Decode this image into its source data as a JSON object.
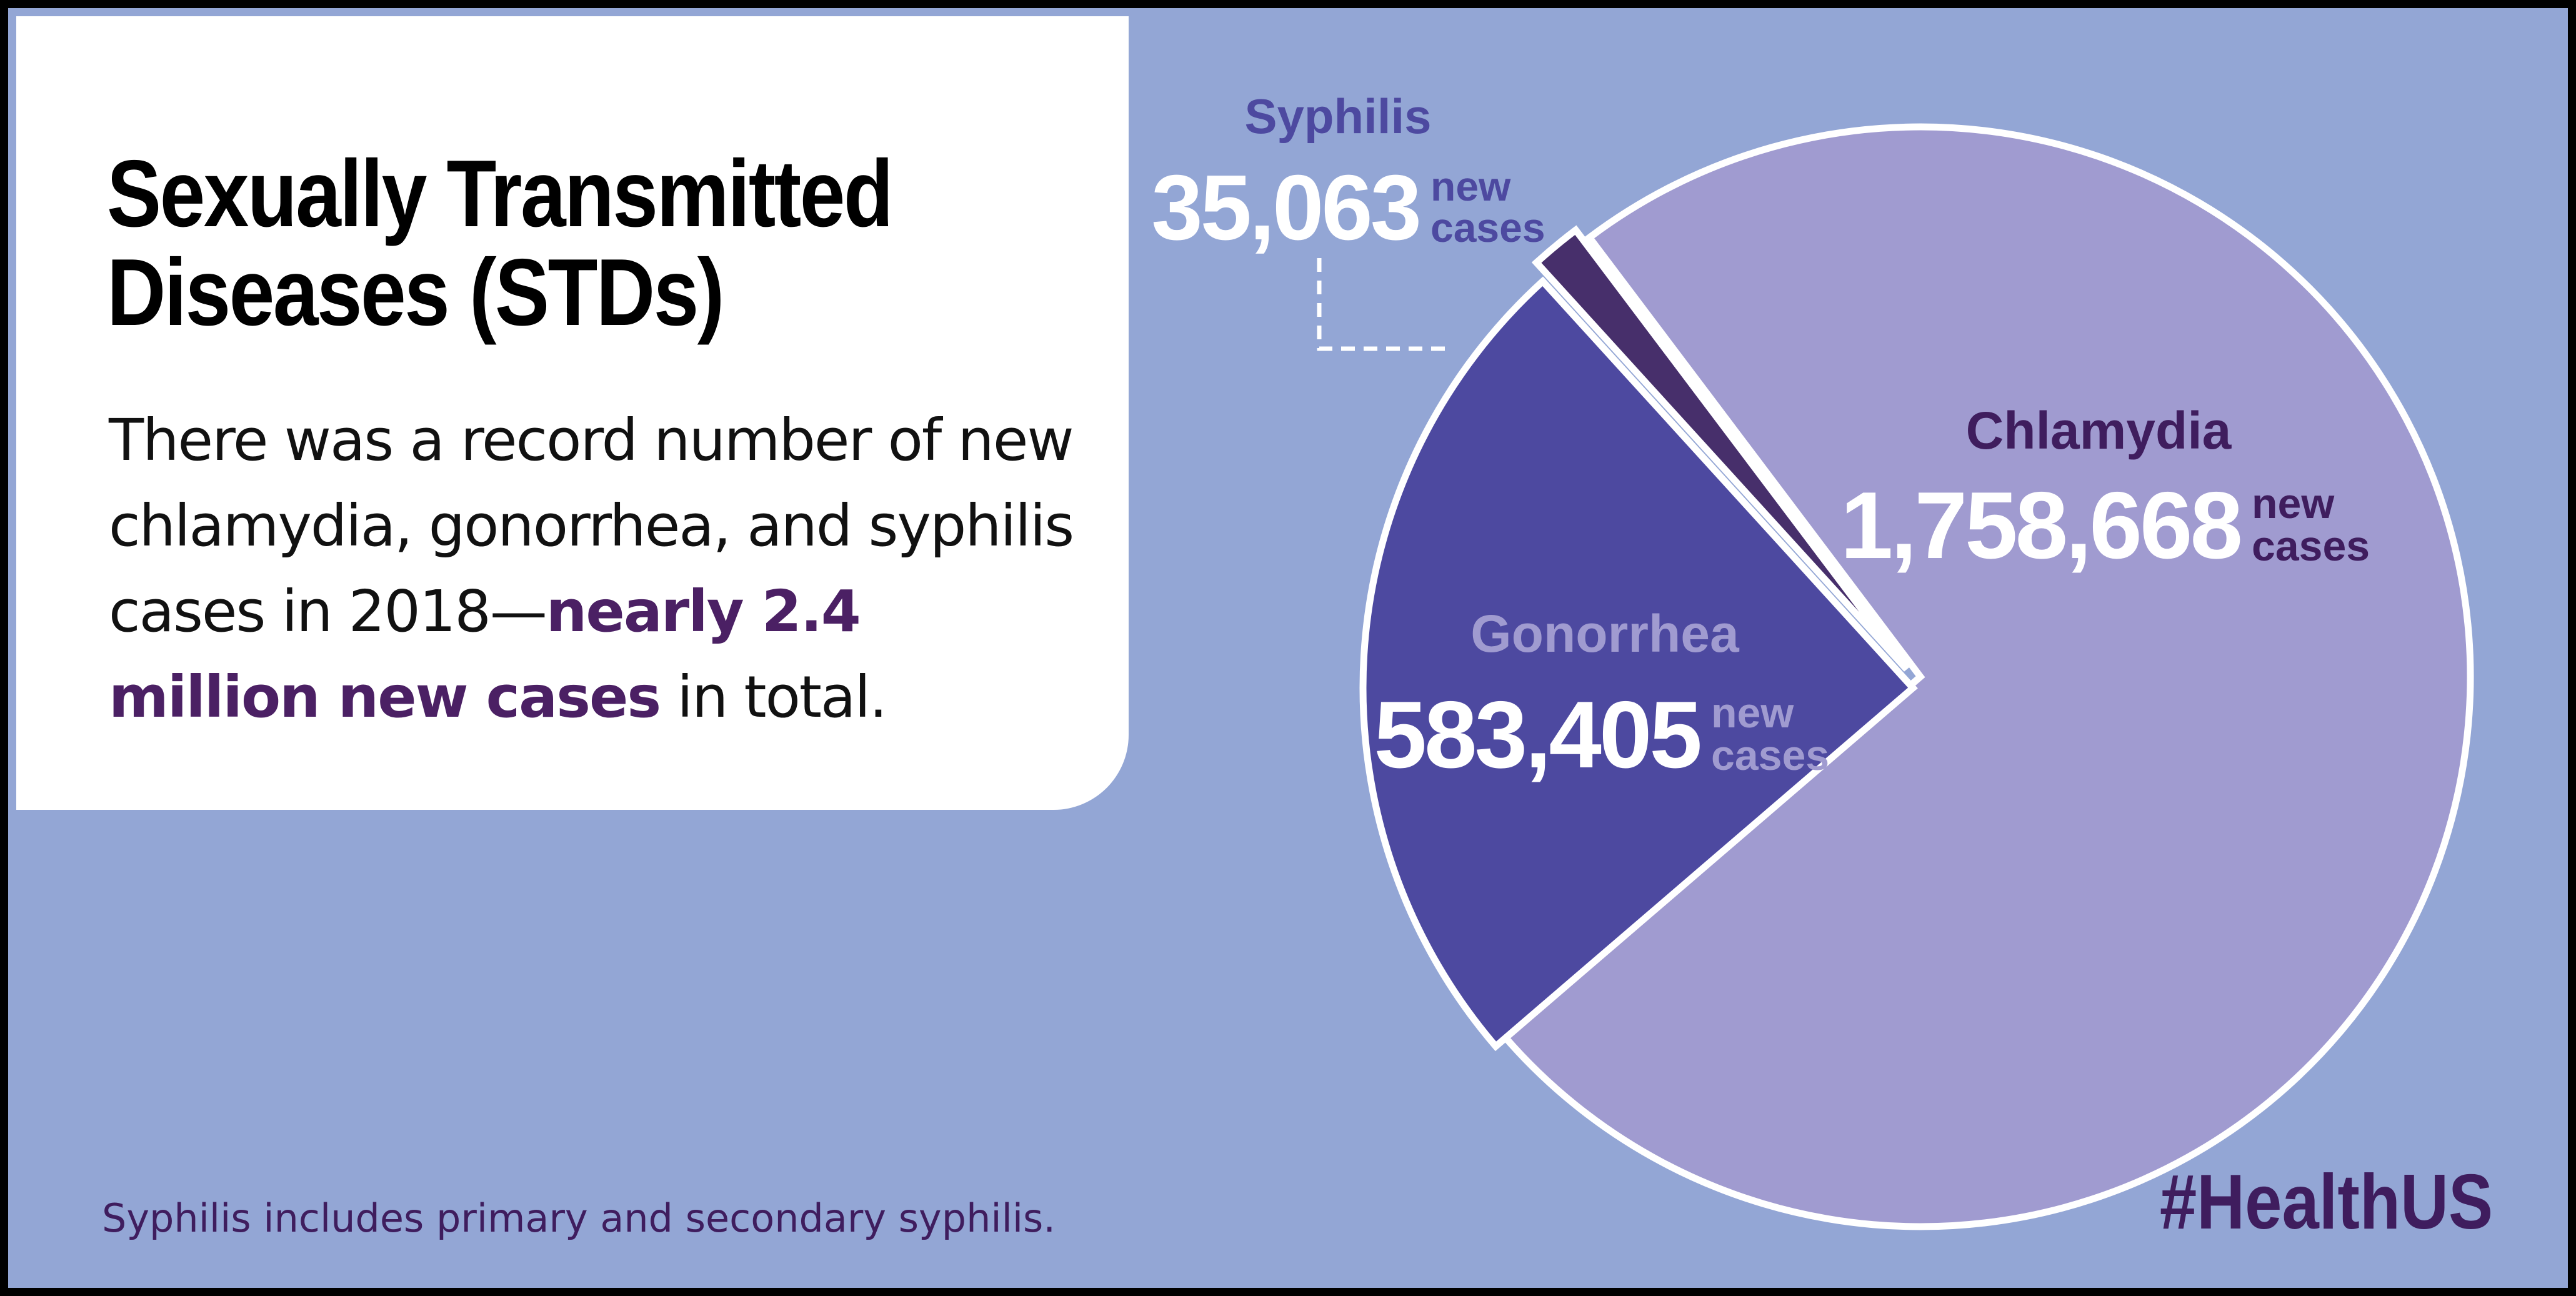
{
  "title": "Sexually Transmitted Diseases (STDs)",
  "body": {
    "text_before": "There was a record number of new chlamydia, gonorrhea, and syphilis cases in 2018—",
    "highlight": "nearly 2.4 million new cases",
    "text_after": " in total."
  },
  "footnote": "Syphilis includes primary and secondary syphilis.",
  "hashtag": "#HealthUS",
  "colors": {
    "background": "#93a6d5",
    "panel": "#ffffff",
    "chlamydia": "#a09bd0",
    "gonorrhea": "#4d49a0",
    "syphilis": "#472f6b",
    "accent_text": "#3f1d5e"
  },
  "chart_data": {
    "type": "pie",
    "title": "",
    "unit_label": "new cases",
    "slices": [
      {
        "name": "Chlamydia",
        "value": 1758668,
        "label": "1,758,668"
      },
      {
        "name": "Gonorrhea",
        "value": 583405,
        "label": "583,405"
      },
      {
        "name": "Syphilis",
        "value": 35063,
        "label": "35,063"
      }
    ]
  }
}
